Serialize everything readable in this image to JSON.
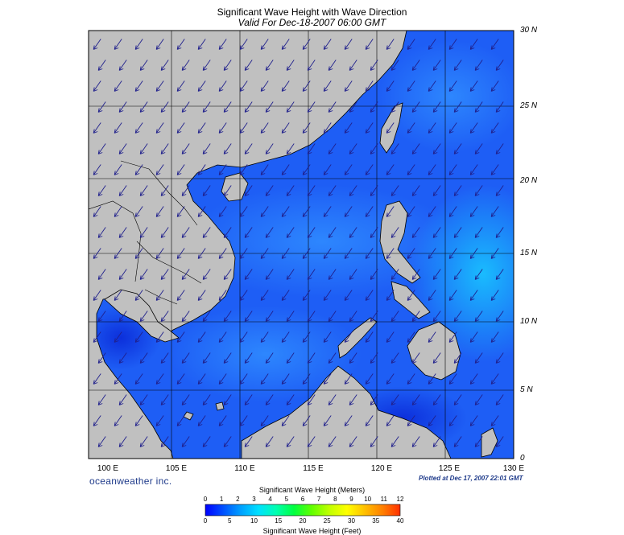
{
  "header": {
    "title": "Significant Wave Height with Wave Direction",
    "subtitle": "Valid For Dec-18-2007 06:00 GMT"
  },
  "map": {
    "lat_labels": [
      "30 N",
      "25 N",
      "20 N",
      "15 N",
      "10 N",
      "5 N",
      "0"
    ],
    "lon_labels": [
      "100 E",
      "105 E",
      "110 E",
      "115 E",
      "120 E",
      "125 E",
      "130 E"
    ],
    "lon_range": [
      99,
      130
    ],
    "lat_range": [
      0,
      30
    ],
    "land_color": "#c0c0c0",
    "sea_color": "#1e5ef5",
    "arrow_color": "#20208c",
    "wave_direction": "toward southwest"
  },
  "footer": {
    "brand": "oceanweather inc.",
    "plotted": "Plotted at Dec 17, 2007 22:01 GMT"
  },
  "colorbar": {
    "title_meters": "Significant Wave Height (Meters)",
    "title_feet": "Significant Wave Height (Feet)",
    "meter_ticks": [
      "0",
      "1",
      "2",
      "3",
      "4",
      "5",
      "6",
      "7",
      "8",
      "9",
      "10",
      "11",
      "12"
    ],
    "feet_ticks": [
      "0",
      "5",
      "10",
      "15",
      "20",
      "25",
      "30",
      "35",
      "40"
    ],
    "colors": [
      "#0000ff",
      "#0050ff",
      "#00a0ff",
      "#00e0ff",
      "#00ffb0",
      "#00ff40",
      "#60ff00",
      "#c0ff00",
      "#ffff00",
      "#ffc000",
      "#ff8000",
      "#ff3000"
    ]
  }
}
